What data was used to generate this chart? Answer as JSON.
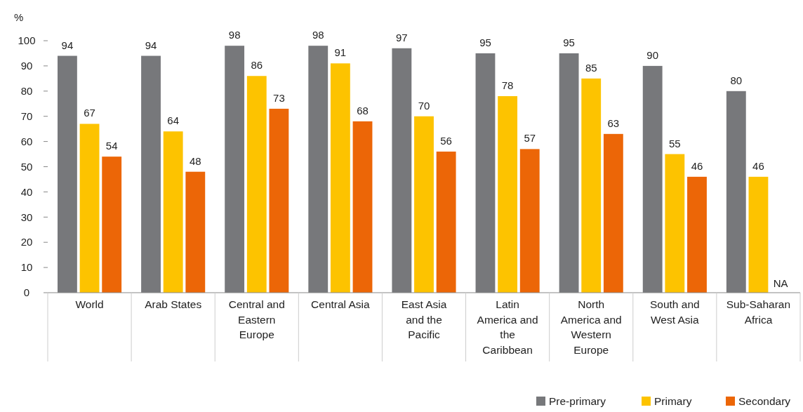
{
  "chart_data": {
    "type": "bar",
    "ylabel": "%",
    "categories": [
      "World",
      "Arab States",
      "Central and Eastern Europe",
      "Central Asia",
      "East Asia and the Pacific",
      "Latin America and the Caribbean",
      "North America and Western Europe",
      "South and West Asia",
      "Sub-Saharan Africa"
    ],
    "series": [
      {
        "name": "Pre-primary",
        "color": "#77787b",
        "values": [
          94,
          94,
          98,
          98,
          97,
          95,
          95,
          90,
          80
        ],
        "value_labels": [
          "94",
          "94",
          "98",
          "98",
          "97",
          "95",
          "95",
          "90",
          "80"
        ]
      },
      {
        "name": "Primary",
        "color": "#fdc300",
        "values": [
          67,
          64,
          86,
          91,
          70,
          78,
          85,
          55,
          46
        ],
        "value_labels": [
          "67",
          "64",
          "86",
          "91",
          "70",
          "78",
          "85",
          "55",
          "46"
        ]
      },
      {
        "name": "Secondary",
        "color": "#ec6607",
        "values": [
          54,
          48,
          73,
          68,
          56,
          57,
          63,
          46,
          null
        ],
        "value_labels": [
          "54",
          "48",
          "73",
          "68",
          "56",
          "57",
          "63",
          "46",
          "NA"
        ]
      }
    ],
    "ylim": [
      0,
      100
    ],
    "yticks": [
      0,
      10,
      20,
      30,
      40,
      50,
      60,
      70,
      80,
      90,
      100
    ],
    "legend": "bottom right"
  }
}
